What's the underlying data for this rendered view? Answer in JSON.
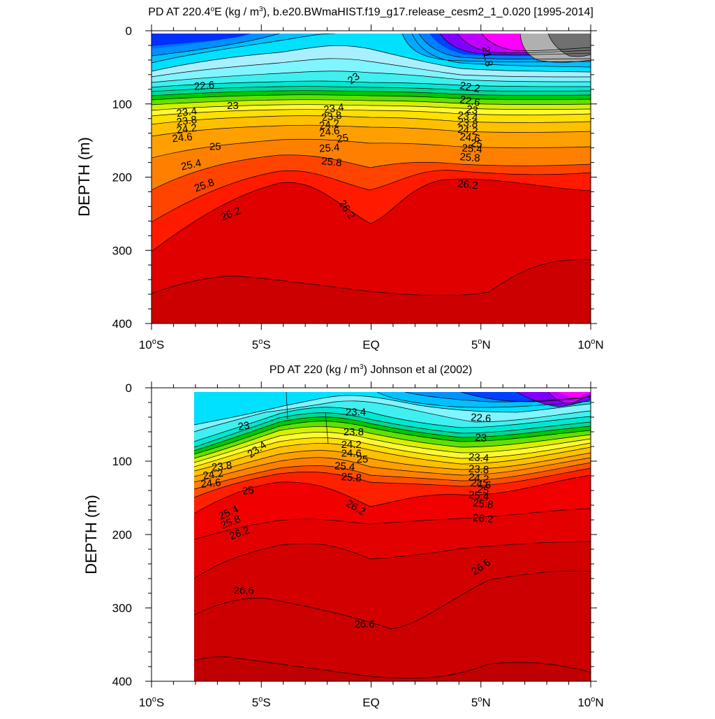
{
  "chart_data": [
    {
      "type": "contour",
      "title": "PD AT 220.4°E (kg / m3), b.e20.BWmaHIST.f19_g17.release_cesm2_1_0.020 [1995-2014]",
      "title_parts": {
        "pre": "PD AT 220.4",
        "deg": "o",
        "mid": "E (kg / m",
        "sup": "3",
        "post": "), b.e20.BWmaHIST.f19_g17.release_cesm2_1_0.020 [1995-2014]"
      },
      "ylabel": "DEPTH (m)",
      "xlim": [
        -10,
        10
      ],
      "ylim": [
        400,
        0
      ],
      "data_xlim": [
        -10,
        10
      ],
      "yticks": [
        "0",
        "100",
        "200",
        "300",
        "400"
      ],
      "ytick_values": [
        0,
        100,
        200,
        300,
        400
      ],
      "xticks": [
        {
          "value": -10,
          "num": "10",
          "deg": "o",
          "hem": "S"
        },
        {
          "value": -5,
          "num": "5",
          "deg": "o",
          "hem": "S"
        },
        {
          "value": 0,
          "num": "EQ",
          "deg": "",
          "hem": ""
        },
        {
          "value": 5,
          "num": "5",
          "deg": "o",
          "hem": "N"
        },
        {
          "value": 10,
          "num": "10",
          "deg": "o",
          "hem": "N"
        }
      ],
      "contour_labels": [
        {
          "text": "21.8",
          "lat": 5.3,
          "depth": 35,
          "angle": 80
        },
        {
          "text": "22.2",
          "lat": 4.5,
          "depth": 77,
          "angle": 10
        },
        {
          "text": "22.6",
          "lat": -7.6,
          "depth": 75,
          "angle": -5
        },
        {
          "text": "22.6",
          "lat": 4.5,
          "depth": 96,
          "angle": 10
        },
        {
          "text": "23",
          "lat": -6.3,
          "depth": 102,
          "angle": 0
        },
        {
          "text": "23",
          "lat": -0.8,
          "depth": 65,
          "angle": -35
        },
        {
          "text": "23",
          "lat": 4.6,
          "depth": 108,
          "angle": 10
        },
        {
          "text": "23.4",
          "lat": -8.4,
          "depth": 111,
          "angle": -8
        },
        {
          "text": "23.4",
          "lat": -1.7,
          "depth": 106,
          "angle": -8
        },
        {
          "text": "23.4",
          "lat": 4.4,
          "depth": 117,
          "angle": 8
        },
        {
          "text": "23.8",
          "lat": -8.4,
          "depth": 123,
          "angle": -8
        },
        {
          "text": "23.8",
          "lat": -1.8,
          "depth": 117,
          "angle": -8
        },
        {
          "text": "23.8",
          "lat": 4.4,
          "depth": 126,
          "angle": 8
        },
        {
          "text": "24.2",
          "lat": -8.4,
          "depth": 134,
          "angle": -8
        },
        {
          "text": "24.2",
          "lat": -1.9,
          "depth": 128,
          "angle": -8
        },
        {
          "text": "24.2",
          "lat": 4.4,
          "depth": 136,
          "angle": 6
        },
        {
          "text": "24.6",
          "lat": -8.6,
          "depth": 146,
          "angle": -6
        },
        {
          "text": "24.6",
          "lat": -1.9,
          "depth": 138,
          "angle": -8
        },
        {
          "text": "24.6",
          "lat": 4.5,
          "depth": 146,
          "angle": 6
        },
        {
          "text": "25",
          "lat": -7.1,
          "depth": 158,
          "angle": 0
        },
        {
          "text": "25",
          "lat": -1.3,
          "depth": 147,
          "angle": -8
        },
        {
          "text": "25",
          "lat": 4.8,
          "depth": 154,
          "angle": 6
        },
        {
          "text": "25.4",
          "lat": -8.2,
          "depth": 183,
          "angle": -12
        },
        {
          "text": "25.4",
          "lat": -1.9,
          "depth": 160,
          "angle": -4
        },
        {
          "text": "25.4",
          "lat": 4.6,
          "depth": 161,
          "angle": 4
        },
        {
          "text": "25.8",
          "lat": -7.6,
          "depth": 211,
          "angle": -20
        },
        {
          "text": "25.8",
          "lat": -1.8,
          "depth": 179,
          "angle": 6
        },
        {
          "text": "25.8",
          "lat": 4.5,
          "depth": 173,
          "angle": 4
        },
        {
          "text": "26.2",
          "lat": -6.4,
          "depth": 250,
          "angle": -22
        },
        {
          "text": "26.2",
          "lat": -1.1,
          "depth": 244,
          "angle": 55
        },
        {
          "text": "26.2",
          "lat": 4.4,
          "depth": 210,
          "angle": 6
        }
      ]
    },
    {
      "type": "contour",
      "title": "PD AT 220 (kg / m3) Johnson et al (2002)",
      "title_parts": {
        "pre": "PD AT 220 (kg / m",
        "sup": "3",
        "post": ") Johnson et al (2002)"
      },
      "ylabel": "DEPTH (m)",
      "xlim": [
        -10,
        10
      ],
      "ylim": [
        400,
        0
      ],
      "data_xlim": [
        -8,
        10
      ],
      "yticks": [
        "0",
        "100",
        "200",
        "300",
        "400"
      ],
      "ytick_values": [
        0,
        100,
        200,
        300,
        400
      ],
      "xticks": [
        {
          "value": -10,
          "num": "10",
          "deg": "o",
          "hem": "S"
        },
        {
          "value": -5,
          "num": "5",
          "deg": "o",
          "hem": "S"
        },
        {
          "value": 0,
          "num": "EQ",
          "deg": "",
          "hem": ""
        },
        {
          "value": 5,
          "num": "5",
          "deg": "o",
          "hem": "N"
        },
        {
          "value": 10,
          "num": "10",
          "deg": "o",
          "hem": "N"
        }
      ],
      "contour_labels": [
        {
          "text": "23",
          "lat": -5.8,
          "depth": 52,
          "angle": -8
        },
        {
          "text": "23.4",
          "lat": -5.2,
          "depth": 84,
          "angle": -35
        },
        {
          "text": "23.4",
          "lat": -0.7,
          "depth": 33,
          "angle": 0
        },
        {
          "text": "23.4",
          "lat": 4.9,
          "depth": 95,
          "angle": 4
        },
        {
          "text": "22.6",
          "lat": 5.0,
          "depth": 41,
          "angle": 4
        },
        {
          "text": "23",
          "lat": 5.0,
          "depth": 68,
          "angle": 4
        },
        {
          "text": "23.8",
          "lat": -6.8,
          "depth": 107,
          "angle": -6
        },
        {
          "text": "23.8",
          "lat": -0.8,
          "depth": 60,
          "angle": 0
        },
        {
          "text": "23.8",
          "lat": 4.9,
          "depth": 111,
          "angle": 4
        },
        {
          "text": "24.2",
          "lat": -7.2,
          "depth": 118,
          "angle": -8
        },
        {
          "text": "24.2",
          "lat": -0.9,
          "depth": 77,
          "angle": 0
        },
        {
          "text": "24.2",
          "lat": 4.9,
          "depth": 123,
          "angle": 8
        },
        {
          "text": "24.6",
          "lat": -7.3,
          "depth": 130,
          "angle": -6
        },
        {
          "text": "24.6",
          "lat": -0.9,
          "depth": 89,
          "angle": 0
        },
        {
          "text": "24.6",
          "lat": 5.0,
          "depth": 131,
          "angle": 8
        },
        {
          "text": "25",
          "lat": -5.6,
          "depth": 140,
          "angle": -6
        },
        {
          "text": "25",
          "lat": -0.4,
          "depth": 97,
          "angle": 0
        },
        {
          "text": "25",
          "lat": 5.1,
          "depth": 139,
          "angle": 8
        },
        {
          "text": "25.4",
          "lat": -6.5,
          "depth": 170,
          "angle": -25
        },
        {
          "text": "25.4",
          "lat": -1.2,
          "depth": 107,
          "angle": 4
        },
        {
          "text": "25.4",
          "lat": 4.9,
          "depth": 147,
          "angle": 6
        },
        {
          "text": "25.8",
          "lat": -6.4,
          "depth": 183,
          "angle": -22
        },
        {
          "text": "25.8",
          "lat": -0.9,
          "depth": 122,
          "angle": 4
        },
        {
          "text": "25.8",
          "lat": 5.1,
          "depth": 158,
          "angle": 6
        },
        {
          "text": "26.2",
          "lat": -6.0,
          "depth": 198,
          "angle": -20
        },
        {
          "text": "26.2",
          "lat": -0.7,
          "depth": 163,
          "angle": 30
        },
        {
          "text": "26.2",
          "lat": 5.1,
          "depth": 178,
          "angle": 4
        },
        {
          "text": "26.6",
          "lat": -5.8,
          "depth": 276,
          "angle": 0
        },
        {
          "text": "26.6",
          "lat": -0.3,
          "depth": 322,
          "angle": 0
        },
        {
          "text": "26.6",
          "lat": 5.0,
          "depth": 244,
          "angle": -35
        }
      ]
    }
  ]
}
